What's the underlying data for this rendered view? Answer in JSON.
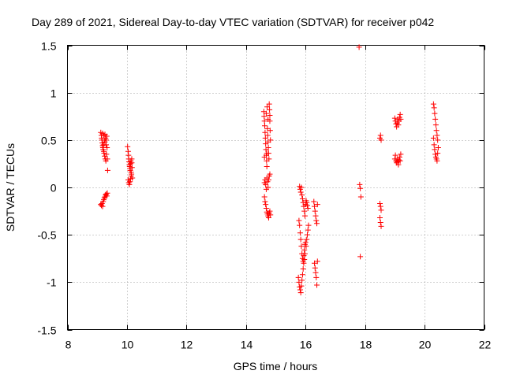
{
  "chart_data": {
    "type": "scatter",
    "title": "Day 289 of 2021, Sidereal Day-to-day VTEC variation (SDTVAR) for receiver p042",
    "xlabel": "GPS time / hours",
    "ylabel": "SDTVAR / TECUs",
    "xlim": [
      8,
      22
    ],
    "ylim": [
      -1.5,
      1.5
    ],
    "xticks": [
      8,
      10,
      12,
      14,
      16,
      18,
      20,
      22
    ],
    "xtick_labels": [
      "8",
      "10",
      "12",
      "14",
      "16",
      "18",
      "20",
      "22"
    ],
    "yticks": [
      -1.5,
      -1,
      -0.5,
      0,
      0.5,
      1,
      1.5
    ],
    "ytick_labels": [
      "-1.5",
      "-1",
      "-0.5",
      "0",
      "0.5",
      "1",
      "1.5"
    ],
    "grid": true,
    "marker": "+",
    "color": "#ff0000",
    "series": [
      {
        "name": "SDTVAR",
        "points": [
          [
            9.12,
            0.58
          ],
          [
            9.14,
            0.55
          ],
          [
            9.15,
            0.52
          ],
          [
            9.16,
            0.5
          ],
          [
            9.17,
            0.47
          ],
          [
            9.18,
            0.44
          ],
          [
            9.19,
            0.42
          ],
          [
            9.2,
            0.4
          ],
          [
            9.21,
            0.45
          ],
          [
            9.22,
            0.38
          ],
          [
            9.23,
            0.36
          ],
          [
            9.24,
            0.5
          ],
          [
            9.25,
            0.33
          ],
          [
            9.26,
            0.48
          ],
          [
            9.27,
            0.3
          ],
          [
            9.28,
            0.52
          ],
          [
            9.29,
            0.28
          ],
          [
            9.3,
            0.45
          ],
          [
            9.31,
            0.35
          ],
          [
            9.32,
            0.54
          ],
          [
            9.33,
            0.42
          ],
          [
            9.34,
            0.3
          ],
          [
            9.35,
            0.18
          ],
          [
            9.18,
            0.57
          ],
          [
            9.22,
            0.55
          ],
          [
            9.26,
            0.56
          ],
          [
            9.3,
            0.5
          ],
          [
            9.12,
            -0.18
          ],
          [
            9.14,
            -0.19
          ],
          [
            9.16,
            -0.17
          ],
          [
            9.18,
            -0.2
          ],
          [
            9.2,
            -0.15
          ],
          [
            9.22,
            -0.13
          ],
          [
            9.24,
            -0.11
          ],
          [
            9.26,
            -0.1
          ],
          [
            9.28,
            -0.08
          ],
          [
            9.3,
            -0.07
          ],
          [
            9.32,
            -0.09
          ],
          [
            9.34,
            -0.06
          ],
          [
            10.02,
            0.43
          ],
          [
            10.04,
            0.38
          ],
          [
            10.05,
            0.34
          ],
          [
            10.06,
            0.3
          ],
          [
            10.07,
            0.27
          ],
          [
            10.08,
            0.24
          ],
          [
            10.09,
            0.22
          ],
          [
            10.1,
            0.2
          ],
          [
            10.11,
            0.18
          ],
          [
            10.12,
            0.25
          ],
          [
            10.13,
            0.28
          ],
          [
            10.14,
            0.16
          ],
          [
            10.15,
            0.14
          ],
          [
            10.16,
            0.3
          ],
          [
            10.17,
            0.21
          ],
          [
            10.18,
            0.1
          ],
          [
            10.04,
            0.08
          ],
          [
            10.06,
            0.05
          ],
          [
            10.08,
            0.03
          ],
          [
            10.1,
            0.06
          ],
          [
            10.12,
            0.09
          ],
          [
            10.14,
            0.12
          ],
          [
            10.16,
            0.26
          ],
          [
            14.6,
            0.8
          ],
          [
            14.61,
            0.75
          ],
          [
            14.62,
            0.7
          ],
          [
            14.63,
            0.65
          ],
          [
            14.64,
            0.58
          ],
          [
            14.65,
            0.52
          ],
          [
            14.66,
            0.46
          ],
          [
            14.67,
            0.4
          ],
          [
            14.68,
            0.34
          ],
          [
            14.69,
            0.28
          ],
          [
            14.7,
            0.22
          ],
          [
            14.71,
            0.85
          ],
          [
            14.72,
            0.62
          ],
          [
            14.73,
            0.55
          ],
          [
            14.74,
            0.48
          ],
          [
            14.75,
            0.42
          ],
          [
            14.76,
            0.36
          ],
          [
            14.77,
            0.3
          ],
          [
            14.78,
            0.88
          ],
          [
            14.79,
            0.82
          ],
          [
            14.8,
            0.7
          ],
          [
            14.81,
            0.6
          ],
          [
            14.82,
            0.5
          ],
          [
            14.68,
            0.78
          ],
          [
            14.74,
            0.72
          ],
          [
            14.8,
            0.76
          ],
          [
            14.62,
            0.32
          ],
          [
            14.7,
            0.36
          ],
          [
            14.62,
            0.05
          ],
          [
            14.64,
            0.08
          ],
          [
            14.66,
            0.03
          ],
          [
            14.68,
            -0.02
          ],
          [
            14.7,
            0.1
          ],
          [
            14.72,
            0.06
          ],
          [
            14.74,
            0.0
          ],
          [
            14.76,
            0.08
          ],
          [
            14.78,
            0.12
          ],
          [
            14.8,
            0.14
          ],
          [
            14.62,
            -0.1
          ],
          [
            14.64,
            -0.15
          ],
          [
            14.66,
            -0.18
          ],
          [
            14.68,
            -0.22
          ],
          [
            14.7,
            -0.26
          ],
          [
            14.72,
            -0.28
          ],
          [
            14.74,
            -0.3
          ],
          [
            14.76,
            -0.32
          ],
          [
            14.78,
            -0.27
          ],
          [
            14.8,
            -0.25
          ],
          [
            14.82,
            -0.29
          ],
          [
            15.8,
            0.01
          ],
          [
            15.82,
            -0.02
          ],
          [
            15.84,
            -0.05
          ],
          [
            15.86,
            0.0
          ],
          [
            15.88,
            -0.08
          ],
          [
            15.9,
            -0.12
          ],
          [
            15.92,
            -0.16
          ],
          [
            15.94,
            -0.2
          ],
          [
            15.96,
            -0.25
          ],
          [
            15.98,
            -0.3
          ],
          [
            16.0,
            -0.18
          ],
          [
            16.02,
            -0.14
          ],
          [
            16.04,
            -0.16
          ],
          [
            16.06,
            -0.19
          ],
          [
            16.08,
            -0.22
          ],
          [
            15.78,
            -0.35
          ],
          [
            15.8,
            -0.4
          ],
          [
            15.82,
            -0.48
          ],
          [
            15.84,
            -0.55
          ],
          [
            15.86,
            -0.62
          ],
          [
            15.88,
            -0.7
          ],
          [
            15.9,
            -0.75
          ],
          [
            15.92,
            -0.78
          ],
          [
            15.94,
            -0.72
          ],
          [
            15.96,
            -0.66
          ],
          [
            15.98,
            -0.6
          ],
          [
            16.0,
            -0.58
          ],
          [
            16.02,
            -0.62
          ],
          [
            16.04,
            -0.55
          ],
          [
            16.06,
            -0.5
          ],
          [
            16.08,
            -0.45
          ],
          [
            16.1,
            -0.4
          ],
          [
            15.76,
            -0.95
          ],
          [
            15.78,
            -1.0
          ],
          [
            15.8,
            -1.05
          ],
          [
            15.82,
            -1.08
          ],
          [
            15.84,
            -1.11
          ],
          [
            15.86,
            -1.04
          ],
          [
            15.88,
            -0.98
          ],
          [
            15.9,
            -0.92
          ],
          [
            15.92,
            -0.86
          ],
          [
            15.94,
            -0.8
          ],
          [
            15.96,
            -0.76
          ],
          [
            15.98,
            -0.7
          ],
          [
            16.28,
            -0.15
          ],
          [
            16.3,
            -0.2
          ],
          [
            16.32,
            -0.25
          ],
          [
            16.34,
            -0.3
          ],
          [
            16.36,
            -0.35
          ],
          [
            16.38,
            -0.38
          ],
          [
            16.4,
            -0.18
          ],
          [
            16.3,
            -0.8
          ],
          [
            16.32,
            -0.85
          ],
          [
            16.34,
            -0.9
          ],
          [
            16.36,
            -0.95
          ],
          [
            16.38,
            -1.03
          ],
          [
            16.4,
            -0.78
          ],
          [
            17.8,
            1.48
          ],
          [
            17.82,
            0.03
          ],
          [
            17.84,
            -0.01
          ],
          [
            17.86,
            -0.1
          ],
          [
            17.84,
            -0.73
          ],
          [
            18.5,
            0.52
          ],
          [
            18.52,
            0.55
          ],
          [
            18.54,
            0.5
          ],
          [
            18.5,
            -0.17
          ],
          [
            18.52,
            -0.2
          ],
          [
            18.54,
            -0.24
          ],
          [
            18.5,
            -0.32
          ],
          [
            18.52,
            -0.37
          ],
          [
            18.54,
            -0.41
          ],
          [
            19.0,
            0.73
          ],
          [
            19.02,
            0.7
          ],
          [
            19.04,
            0.67
          ],
          [
            19.06,
            0.64
          ],
          [
            19.08,
            0.68
          ],
          [
            19.1,
            0.72
          ],
          [
            19.12,
            0.66
          ],
          [
            19.14,
            0.7
          ],
          [
            19.16,
            0.74
          ],
          [
            19.18,
            0.77
          ],
          [
            19.2,
            0.72
          ],
          [
            19.0,
            0.3
          ],
          [
            19.02,
            0.34
          ],
          [
            19.04,
            0.28
          ],
          [
            19.06,
            0.26
          ],
          [
            19.08,
            0.3
          ],
          [
            19.1,
            0.27
          ],
          [
            19.12,
            0.24
          ],
          [
            19.14,
            0.29
          ],
          [
            19.16,
            0.32
          ],
          [
            19.18,
            0.28
          ],
          [
            19.2,
            0.35
          ],
          [
            20.3,
            0.88
          ],
          [
            20.32,
            0.84
          ],
          [
            20.34,
            0.78
          ],
          [
            20.36,
            0.72
          ],
          [
            20.38,
            0.66
          ],
          [
            20.4,
            0.6
          ],
          [
            20.42,
            0.55
          ],
          [
            20.44,
            0.5
          ],
          [
            20.32,
            0.45
          ],
          [
            20.34,
            0.4
          ],
          [
            20.36,
            0.35
          ],
          [
            20.38,
            0.32
          ],
          [
            20.4,
            0.3
          ],
          [
            20.42,
            0.28
          ],
          [
            20.44,
            0.36
          ],
          [
            20.3,
            0.52
          ],
          [
            20.46,
            0.42
          ]
        ]
      }
    ]
  }
}
